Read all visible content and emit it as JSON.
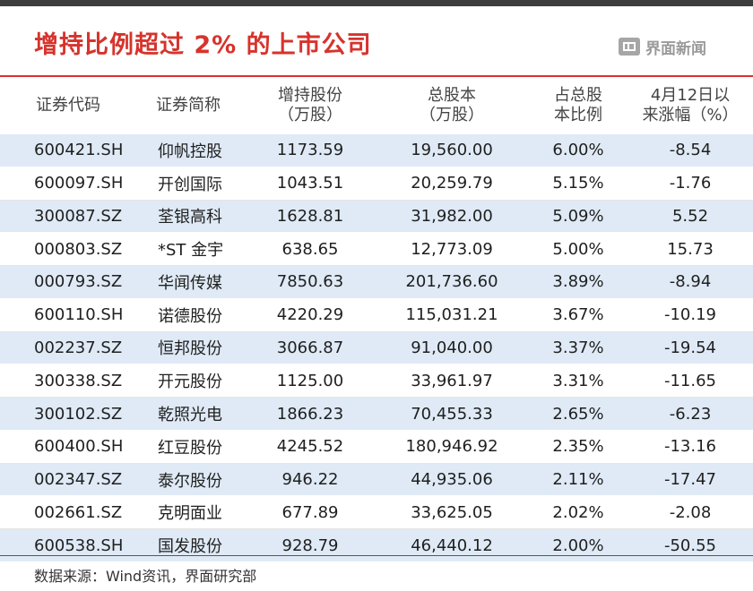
{
  "title": "增持比例超过 2% 的上市公司",
  "brand": {
    "name": "界面新闻",
    "logo_icon": "jiemian-logo-icon"
  },
  "table": {
    "headers": [
      {
        "line1": "证券代码",
        "line2": ""
      },
      {
        "line1": "证券简称",
        "line2": ""
      },
      {
        "line1": "增持股份",
        "line2": "（万股）"
      },
      {
        "line1": "总股本",
        "line2": "（万股）"
      },
      {
        "line1": "占总股",
        "line2": "本比例"
      },
      {
        "line1": "4月12日以",
        "line2": "来涨幅（%）"
      }
    ],
    "rows": [
      {
        "code": "600421.SH",
        "name": "仰帆控股",
        "added": "1173.59",
        "total": "19,560.00",
        "ratio": "6.00%",
        "change": "-8.54"
      },
      {
        "code": "600097.SH",
        "name": "开创国际",
        "added": "1043.51",
        "total": "20,259.79",
        "ratio": "5.15%",
        "change": "-1.76"
      },
      {
        "code": "300087.SZ",
        "name": "荃银高科",
        "added": "1628.81",
        "total": "31,982.00",
        "ratio": "5.09%",
        "change": "5.52"
      },
      {
        "code": "000803.SZ",
        "name": "*ST 金宇",
        "added": "638.65",
        "total": "12,773.09",
        "ratio": "5.00%",
        "change": "15.73"
      },
      {
        "code": "000793.SZ",
        "name": "华闻传媒",
        "added": "7850.63",
        "total": "201,736.60",
        "ratio": "3.89%",
        "change": "-8.94"
      },
      {
        "code": "600110.SH",
        "name": "诺德股份",
        "added": "4220.29",
        "total": "115,031.21",
        "ratio": "3.67%",
        "change": "-10.19"
      },
      {
        "code": "002237.SZ",
        "name": "恒邦股份",
        "added": "3066.87",
        "total": "91,040.00",
        "ratio": "3.37%",
        "change": "-19.54"
      },
      {
        "code": "300338.SZ",
        "name": "开元股份",
        "added": "1125.00",
        "total": "33,961.97",
        "ratio": "3.31%",
        "change": "-11.65"
      },
      {
        "code": "300102.SZ",
        "name": "乾照光电",
        "added": "1866.23",
        "total": "70,455.33",
        "ratio": "2.65%",
        "change": "-6.23"
      },
      {
        "code": "600400.SH",
        "name": "红豆股份",
        "added": "4245.52",
        "total": "180,946.92",
        "ratio": "2.35%",
        "change": "-13.16"
      },
      {
        "code": "002347.SZ",
        "name": "泰尔股份",
        "added": "946.22",
        "total": "44,935.06",
        "ratio": "2.11%",
        "change": "-17.47"
      },
      {
        "code": "002661.SZ",
        "name": "克明面业",
        "added": "677.89",
        "total": "33,625.05",
        "ratio": "2.02%",
        "change": "-2.08"
      },
      {
        "code": "600538.SH",
        "name": "国发股份",
        "added": "928.79",
        "total": "46,440.12",
        "ratio": "2.00%",
        "change": "-50.55"
      }
    ]
  },
  "source": "数据来源：Wind资讯，界面研究部",
  "colors": {
    "accent": "#d6332c",
    "stripe": "#dfeaf6"
  }
}
